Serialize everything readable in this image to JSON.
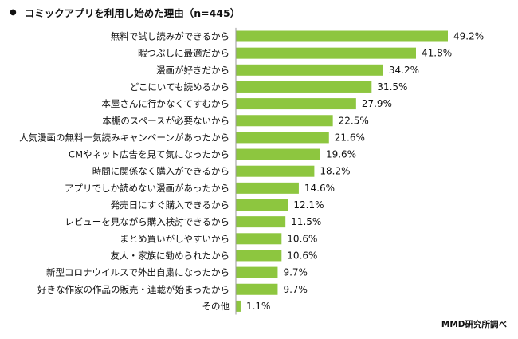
{
  "title": "コミックアプリを利用し始めた理由（n=445）",
  "source": "MMD研究所調べ",
  "colors": {
    "bar": "#8dc63f",
    "axis": "#9a9a9a"
  },
  "chart_data": {
    "type": "bar",
    "orientation": "horizontal",
    "title": "コミックアプリを利用し始めた理由（n=445）",
    "unit": "%",
    "categories": [
      "無料で試し読みができるから",
      "暇つぶしに最適だから",
      "漫画が好きだから",
      "どこにいても読めるから",
      "本屋さんに行かなくてすむから",
      "本棚のスペースが必要ないから",
      "人気漫画の無料一気読みキャンペーンがあったから",
      "CMやネット広告を見て気になったから",
      "時間に関係なく購入ができるから",
      "アプリでしか読めない漫画があったから",
      "発売日にすぐ購入できるから",
      "レビューを見ながら購入検討できるから",
      "まとめ買いがしやすいから",
      "友人・家族に勧められたから",
      "新型コロナウイルスで外出自粛になったから",
      "好きな作家の作品の販売・連載が始まったから",
      "その他"
    ],
    "values": [
      49.2,
      41.8,
      34.2,
      31.5,
      27.9,
      22.5,
      21.6,
      19.6,
      18.2,
      14.6,
      12.1,
      11.5,
      10.6,
      10.6,
      9.7,
      9.7,
      1.1
    ],
    "labels": [
      "49.2%",
      "41.8%",
      "34.2%",
      "31.5%",
      "27.9%",
      "22.5%",
      "21.6%",
      "19.6%",
      "18.2%",
      "14.6%",
      "12.1%",
      "11.5%",
      "10.6%",
      "10.6%",
      "9.7%",
      "9.7%",
      "1.1%"
    ],
    "xlim": [
      0,
      49.2
    ],
    "grid": false,
    "legend": "none"
  }
}
